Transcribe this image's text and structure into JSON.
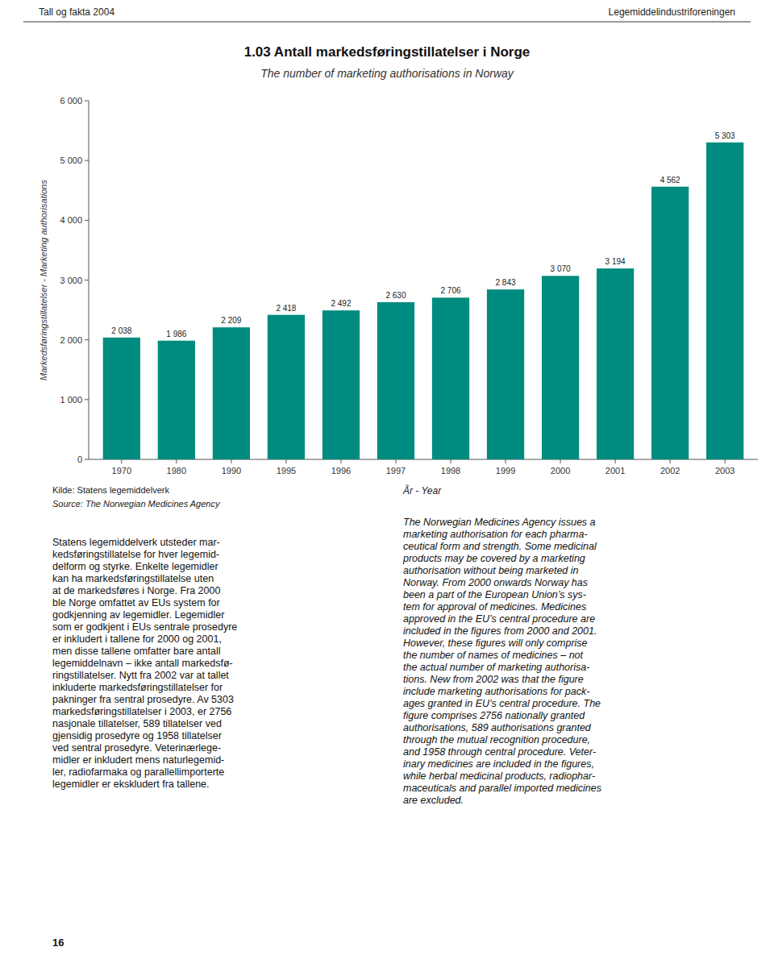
{
  "header": {
    "left": "Tall og fakta 2004",
    "right": "Legemiddelindustriforeningen"
  },
  "chart_data": {
    "type": "bar",
    "title": "1.03 Antall markedsføringstillatelser i Norge",
    "subtitle": "The number of marketing authorisations in Norway",
    "y_label": "Markedsføringstillatelser - Marketing authorisations",
    "x_label": "År - Year",
    "categories": [
      "1970",
      "1980",
      "1990",
      "1995",
      "1996",
      "1997",
      "1998",
      "1999",
      "2000",
      "2001",
      "2002",
      "2003"
    ],
    "values": [
      2038,
      1986,
      2209,
      2418,
      2492,
      2630,
      2706,
      2843,
      3070,
      3194,
      4562,
      5303
    ],
    "value_labels": [
      "2 038",
      "1 986",
      "2 209",
      "2 418",
      "2 492",
      "2 630",
      "2 706",
      "2 843",
      "3 070",
      "3 194",
      "4 562",
      "5 303"
    ],
    "data_labels": true,
    "color": "#008B80",
    "ylim": [
      0,
      6000
    ],
    "yticks": [
      0,
      {
        "value": 1000,
        "label": "1 000"
      },
      {
        "value": 2000,
        "label": "2 000"
      },
      {
        "value": 3000,
        "label": "3 000"
      },
      {
        "value": 4000,
        "label": "4 000"
      },
      {
        "value": 5000,
        "label": "5 000"
      },
      {
        "value": 6000,
        "label": "6 000"
      }
    ],
    "grid": false
  },
  "source": [
    "Kilde: Statens legemiddelverk",
    "Source: The Norwegian Medicines Agency"
  ],
  "body_left": [
    "Statens legemiddelverk utsteder mar-",
    "kedsføringstillatelse for hver legemid-",
    "delform og styrke. Enkelte legemidler",
    "kan ha markedsføringstillatelse uten",
    "at de markedsføres i Norge. Fra 2000",
    "ble Norge omfattet av EUs system for",
    "godkjenning av legemidler. Legemidler",
    "som er godkjent i EUs sentrale prosedyre",
    "er inkludert i tallene for 2000 og 2001,",
    "men disse tallene omfatter bare antall",
    "legemiddelnavn – ikke antall markedsfø-",
    "ringstillatelser. Nytt fra 2002 var at tallet",
    "inkluderte markedsføringstillatelser for",
    "pakninger fra sentral prosedyre. Av 5303",
    "markedsføringstillatelser i 2003, er 2756",
    "nasjonale tillatelser, 589 tillatelser ved",
    "gjensidig prosedyre og 1958 tillatelser",
    "ved sentral prosedyre. Veterinærlege-",
    "midler er inkludert mens naturlegemid-",
    "ler, radiofarmaka og parallellimporterte",
    "legemidler er ekskludert fra tallene."
  ],
  "body_right": [
    "The Norwegian Medicines Agency issues a",
    "marketing authorisation for each pharma-",
    "ceutical form and strength. Some medicinal",
    "products may be covered by a marketing",
    "authorisation without being marketed in",
    "Norway. From 2000 onwards Norway has",
    "been a part of the European Union’s sys-",
    "tem for approval of medicines. Medicines",
    "approved in the EU’s central procedure are",
    "included in the figures from 2000 and 2001.",
    "However, these figures will only comprise",
    "the number of names of medicines – not",
    "the actual number of marketing authorisa-",
    "tions. New from 2002 was that the figure",
    "include marketing authorisations for pack-",
    "ages granted in EU’s central procedure. The",
    "figure comprises 2756 nationally granted",
    "authorisations, 589 authorisations granted",
    "through the mutual recognition procedure,",
    "and 1958 through central procedure. Veter-",
    "inary medicines are included in the figures,",
    "while herbal medicinal products, radiophar-",
    "maceuticals and parallel imported medicines",
    "are excluded."
  ],
  "page_number": "16"
}
